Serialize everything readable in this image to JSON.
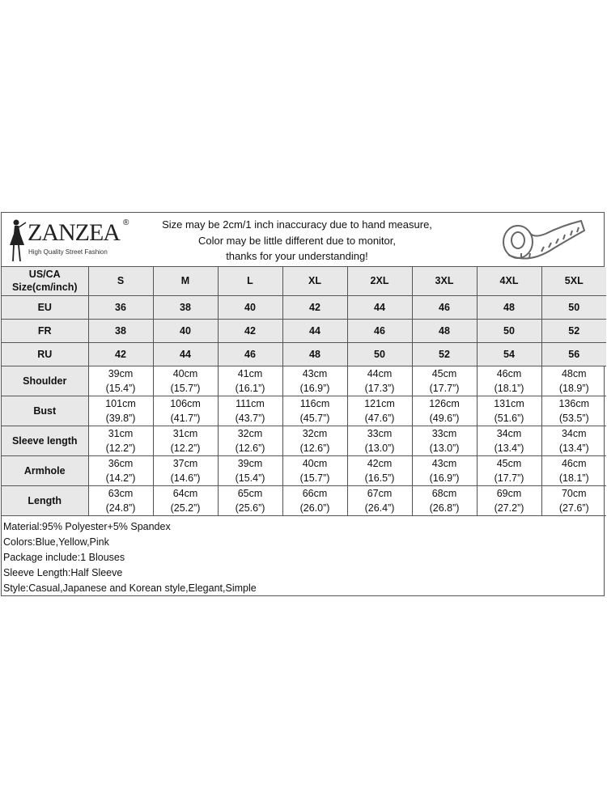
{
  "logo": {
    "brand": "ZANZEA",
    "registered": "®",
    "tagline": "High Quality Street Fashion"
  },
  "notice": [
    "Size may be 2cm/1 inch inaccuracy due to hand measure,",
    "Color may be little different due to monitor,",
    "thanks for your understanding!"
  ],
  "icons": {
    "logo_figure": "woman-silhouette-icon",
    "tape": "measuring-tape-icon"
  },
  "colors": {
    "header_bg": "#e8e8e8",
    "border": "#555555"
  },
  "table": {
    "header_label": [
      "US/CA",
      "Size(cm/inch)"
    ],
    "sizes": [
      "S",
      "M",
      "L",
      "XL",
      "2XL",
      "3XL",
      "4XL",
      "5XL"
    ],
    "conversions": [
      {
        "label": "EU",
        "values": [
          "36",
          "38",
          "40",
          "42",
          "44",
          "46",
          "48",
          "50"
        ]
      },
      {
        "label": "FR",
        "values": [
          "38",
          "40",
          "42",
          "44",
          "46",
          "48",
          "50",
          "52"
        ]
      },
      {
        "label": "RU",
        "values": [
          "42",
          "44",
          "46",
          "48",
          "50",
          "52",
          "54",
          "56"
        ]
      }
    ],
    "measurements": [
      {
        "label": "Shoulder",
        "cm": [
          "39cm",
          "40cm",
          "41cm",
          "43cm",
          "44cm",
          "45cm",
          "46cm",
          "48cm"
        ],
        "inch": [
          "(15.4”)",
          "(15.7”)",
          "(16.1”)",
          "(16.9”)",
          "(17.3”)",
          "(17.7”)",
          "(18.1”)",
          "(18.9”)"
        ]
      },
      {
        "label": "Bust",
        "cm": [
          "101cm",
          "106cm",
          "111cm",
          "116cm",
          "121cm",
          "126cm",
          "131cm",
          "136cm"
        ],
        "inch": [
          "(39.8”)",
          "(41.7”)",
          "(43.7”)",
          "(45.7”)",
          "(47.6”)",
          "(49.6”)",
          "(51.6”)",
          "(53.5”)"
        ]
      },
      {
        "label": "Sleeve length",
        "cm": [
          "31cm",
          "31cm",
          "32cm",
          "32cm",
          "33cm",
          "33cm",
          "34cm",
          "34cm"
        ],
        "inch": [
          "(12.2”)",
          "(12.2”)",
          "(12.6”)",
          "(12.6”)",
          "(13.0”)",
          "(13.0”)",
          "(13.4”)",
          "(13.4”)"
        ]
      },
      {
        "label": "Armhole",
        "cm": [
          "36cm",
          "37cm",
          "39cm",
          "40cm",
          "42cm",
          "43cm",
          "45cm",
          "46cm"
        ],
        "inch": [
          "(14.2”)",
          "(14.6”)",
          "(15.4”)",
          "(15.7”)",
          "(16.5”)",
          "(16.9”)",
          "(17.7”)",
          "(18.1”)"
        ]
      },
      {
        "label": "Length",
        "cm": [
          "63cm",
          "64cm",
          "65cm",
          "66cm",
          "67cm",
          "68cm",
          "69cm",
          "70cm"
        ],
        "inch": [
          "(24.8”)",
          "(25.2”)",
          "(25.6”)",
          "(26.0”)",
          "(26.4”)",
          "(26.8”)",
          "(27.2”)",
          "(27.6”)"
        ]
      }
    ]
  },
  "notes": [
    "Material:95% Polyester+5% Spandex",
    "Colors:Blue,Yellow,Pink",
    "Package include:1 Blouses",
    "Sleeve Length:Half Sleeve",
    "Style:Casual,Japanese and Korean style,Elegant,Simple"
  ]
}
